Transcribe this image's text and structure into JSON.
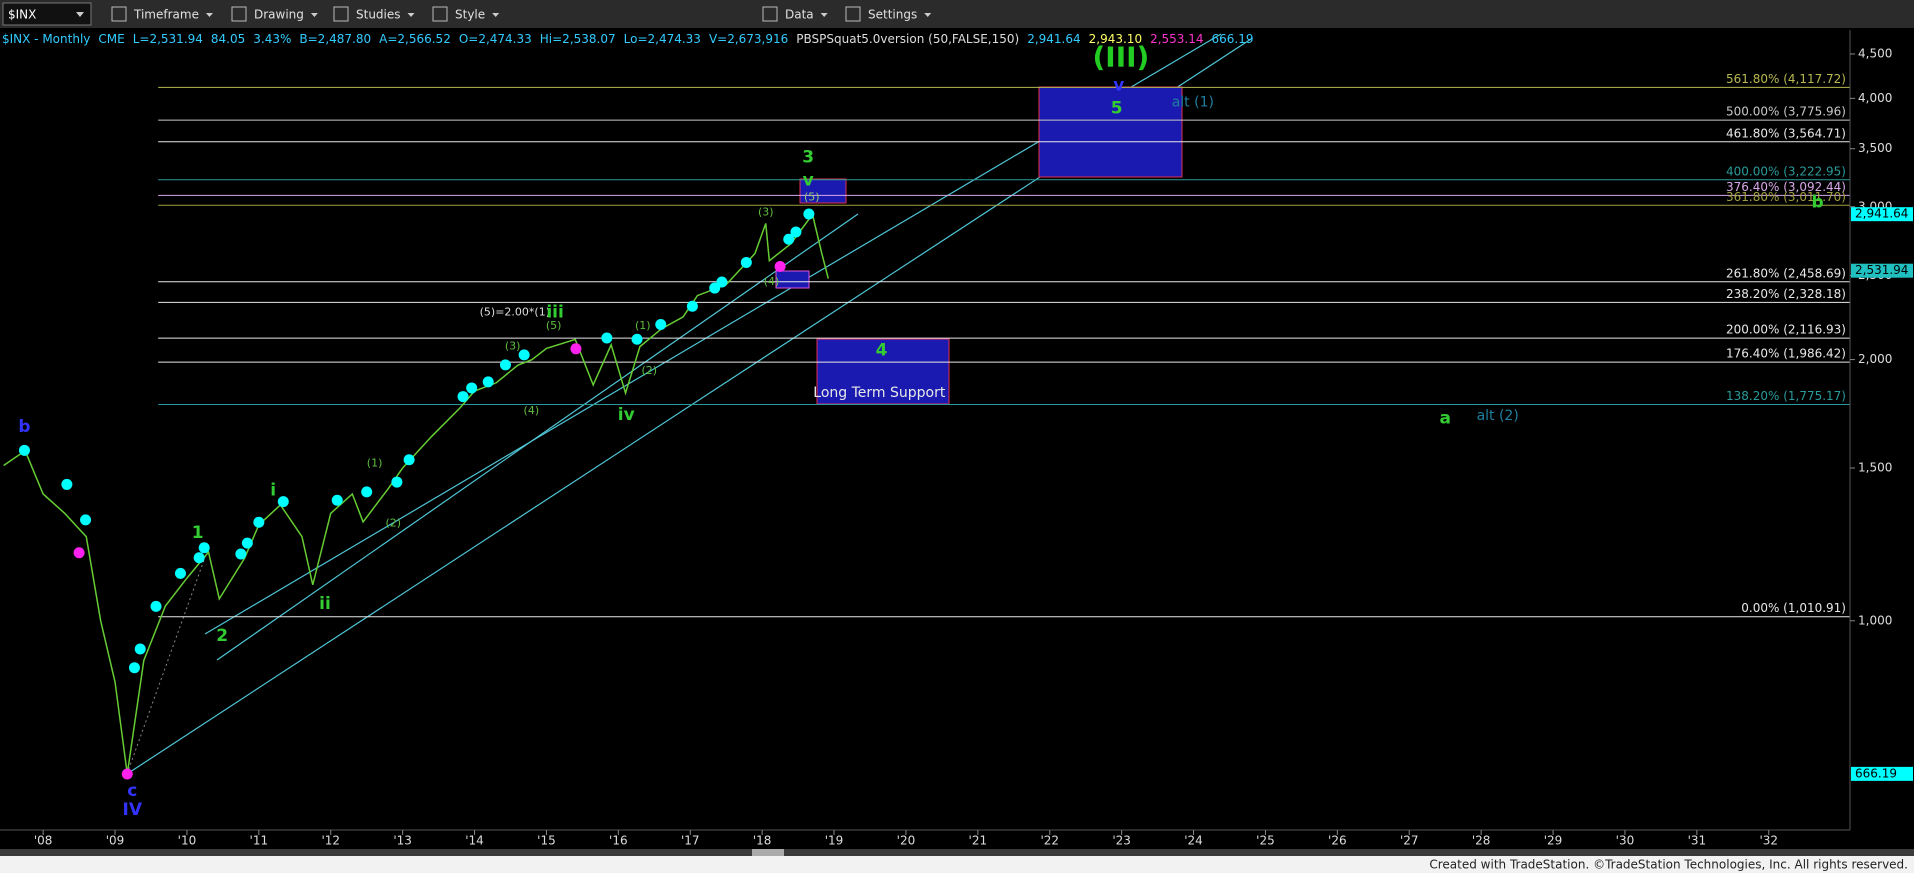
{
  "toolbar": {
    "symbol": "$INX",
    "menus": [
      "Timeframe",
      "Drawing",
      "Studies",
      "Style",
      "Data",
      "Settings"
    ]
  },
  "header": {
    "parts": [
      {
        "text": "$INX - Monthly",
        "color": "#33ccff"
      },
      {
        "text": "CME",
        "color": "#33ccff"
      },
      {
        "text": "L=2,531.94",
        "color": "#33ccff"
      },
      {
        "text": "84.05",
        "color": "#33ccff"
      },
      {
        "text": "3.43%",
        "color": "#33ccff"
      },
      {
        "text": "B=2,487.80",
        "color": "#33ccff"
      },
      {
        "text": "A=2,566.52",
        "color": "#33ccff"
      },
      {
        "text": "O=2,474.33",
        "color": "#33ccff"
      },
      {
        "text": "Hi=2,538.07",
        "color": "#33ccff"
      },
      {
        "text": "Lo=2,474.33",
        "color": "#33ccff"
      },
      {
        "text": "V=2,673,916",
        "color": "#33ccff"
      },
      {
        "text": "PBSPSquat5.0version (50,FALSE,150)",
        "color": "#dddddd"
      },
      {
        "text": "2,941.64",
        "color": "#33ccff"
      },
      {
        "text": "2,943.10",
        "color": "#ffff66"
      },
      {
        "text": "2,553.14",
        "color": "#ff33cc"
      },
      {
        "text": "666.19",
        "color": "#33ccff"
      }
    ]
  },
  "chart_data": {
    "type": "line",
    "log_scale": true,
    "xlim": [
      2007.4,
      2033.13
    ],
    "ylim": [
      574,
      4670
    ],
    "xticks": [
      {
        "value": 2008,
        "label": "'08"
      },
      {
        "value": 2009,
        "label": "'09"
      },
      {
        "value": 2010,
        "label": "'10"
      },
      {
        "value": 2011,
        "label": "'11"
      },
      {
        "value": 2012,
        "label": "'12"
      },
      {
        "value": 2013,
        "label": "'13"
      },
      {
        "value": 2014,
        "label": "'14"
      },
      {
        "value": 2015,
        "label": "'15"
      },
      {
        "value": 2016,
        "label": "'16"
      },
      {
        "value": 2017,
        "label": "'17"
      },
      {
        "value": 2018,
        "label": "'18"
      },
      {
        "value": 2019,
        "label": "'19"
      },
      {
        "value": 2020,
        "label": "'20"
      },
      {
        "value": 2021,
        "label": "'21"
      },
      {
        "value": 2022,
        "label": "'22"
      },
      {
        "value": 2023,
        "label": "'23"
      },
      {
        "value": 2024,
        "label": "'24"
      },
      {
        "value": 2025,
        "label": "'25"
      },
      {
        "value": 2026,
        "label": "'26"
      },
      {
        "value": 2027,
        "label": "'27"
      },
      {
        "value": 2028,
        "label": "'28"
      },
      {
        "value": 2029,
        "label": "'29"
      },
      {
        "value": 2030,
        "label": "'30"
      },
      {
        "value": 2031,
        "label": "'31"
      },
      {
        "value": 2032,
        "label": "'32"
      }
    ],
    "yticks": [
      {
        "value": 4500,
        "label": "4,500"
      },
      {
        "value": 4000,
        "label": "4,000"
      },
      {
        "value": 3500,
        "label": "3,500"
      },
      {
        "value": 3000,
        "label": "3,000"
      },
      {
        "value": 2500,
        "label": "2,500"
      },
      {
        "value": 2000,
        "label": "2,000"
      },
      {
        "value": 1500,
        "label": "1,500"
      },
      {
        "value": 1000,
        "label": "1,000"
      }
    ],
    "x": [
      2007.45,
      2007.75,
      2008.0,
      2008.3,
      2008.6,
      2008.8,
      2009.0,
      2009.17,
      2009.4,
      2009.7,
      2010.0,
      2010.3,
      2010.45,
      2010.8,
      2011.0,
      2011.3,
      2011.6,
      2011.75,
      2012.0,
      2012.3,
      2012.45,
      2012.8,
      2013.0,
      2013.4,
      2013.8,
      2014.0,
      2014.3,
      2014.6,
      2014.8,
      2015.0,
      2015.4,
      2015.65,
      2015.9,
      2016.1,
      2016.3,
      2016.6,
      2016.9,
      2017.1,
      2017.5,
      2017.9,
      2018.05,
      2018.1,
      2018.4,
      2018.7,
      2018.83,
      2018.92
    ],
    "series": [
      {
        "color": "#66cc33",
        "values": [
          1510,
          1570,
          1400,
          1330,
          1250,
          1000,
          850,
          666,
          900,
          1040,
          1120,
          1200,
          1060,
          1180,
          1290,
          1360,
          1250,
          1100,
          1330,
          1400,
          1300,
          1420,
          1500,
          1630,
          1760,
          1840,
          1880,
          1970,
          2000,
          2060,
          2110,
          1870,
          2080,
          1830,
          2070,
          2170,
          2240,
          2370,
          2440,
          2650,
          2870,
          2600,
          2720,
          2940,
          2650,
          2480
        ]
      }
    ],
    "marker_sets": [
      {
        "color": "#00ffff",
        "x": [
          2007.74,
          2008.33,
          2008.59,
          2009.27,
          2009.35,
          2009.57,
          2009.91,
          2010.17,
          2010.24,
          2010.75,
          2010.84,
          2011.0,
          2011.34,
          2012.09,
          2012.5,
          2012.92,
          2013.09,
          2013.84,
          2013.96,
          2014.19,
          2014.43,
          2014.69,
          2015.84,
          2016.26,
          2016.59,
          2017.03,
          2017.34,
          2017.44,
          2017.78,
          2018.37,
          2018.47,
          2018.65
        ],
        "values": [
          1572,
          1436,
          1307,
          883,
          928,
          1039,
          1134,
          1182,
          1214,
          1194,
          1229,
          1299,
          1372,
          1377,
          1408,
          1445,
          1533,
          1813,
          1855,
          1885,
          1972,
          2025,
          2118,
          2111,
          2195,
          2304,
          2418,
          2457,
          2588,
          2752,
          2806,
          2943
        ]
      },
      {
        "color": "#ff22ee",
        "x": [
          2008.5,
          2009.17,
          2015.41,
          2018.25
        ],
        "values": [
          1198,
          666,
          2058,
          2560
        ]
      }
    ],
    "levels": [
      {
        "label": "561.80% (4,117.72)",
        "value": 4117.72,
        "color": "#b8b850"
      },
      {
        "label": "500.00% (3,775.96)",
        "value": 3775.96,
        "color": "#c8c8c8"
      },
      {
        "label": "461.80% (3,564.71)",
        "value": 3564.71,
        "color": "#e8e8e8"
      },
      {
        "label": "400.00% (3,222.95)",
        "value": 3222.95,
        "color": "#2a9a9a"
      },
      {
        "label": "376.40% (3,092.44)",
        "value": 3092.44,
        "color": "#d8a8e8"
      },
      {
        "label": "361.80% (3,011.70)",
        "value": 3011.7,
        "color": "#a0a040"
      },
      {
        "label": "261.80% (2,458.69)",
        "value": 2458.69,
        "color": "#e8e8e8"
      },
      {
        "label": "238.20% (2,328.18)",
        "value": 2328.18,
        "color": "#e8e8e8"
      },
      {
        "label": "200.00% (2,116.93)",
        "value": 2116.93,
        "color": "#e8e8e8"
      },
      {
        "label": "176.40% (1,986.42)",
        "value": 1986.42,
        "color": "#e8e8e8"
      },
      {
        "label": "138.20% (1,775.17)",
        "value": 1775.17,
        "color": "#2a9a9a"
      },
      {
        "label": "0.00% (1,010.91)",
        "value": 1010.91,
        "color": "#e8e8e8"
      }
    ],
    "price_tags": [
      {
        "value": 2941.64,
        "label": "2,941.64",
        "color": "#00ffff"
      },
      {
        "value": 2531.94,
        "label": "2,531.94",
        "color": "#20c0c0"
      },
      {
        "value": 666.19,
        "label": "666.19",
        "color": "#00ffff"
      }
    ],
    "annotations": [
      {
        "text": "(III)",
        "x": 2022.99,
        "y": 4445,
        "color": "#22cc22",
        "style": "large"
      },
      {
        "text": "v",
        "x": 2022.96,
        "y": 4140,
        "color": "#3333ff",
        "style": "medium"
      },
      {
        "text": "5",
        "x": 2022.93,
        "y": 3893,
        "color": "#33cc33",
        "style": "medium"
      },
      {
        "text": "alt (1)",
        "x": 2023.99,
        "y": 3955,
        "color": "#1f7f9f",
        "style": "label"
      },
      {
        "text": "b",
        "x": 2032.68,
        "y": 3034,
        "color": "#33cc33",
        "style": "medium"
      },
      {
        "text": "a",
        "x": 2027.5,
        "y": 1710,
        "color": "#33cc33",
        "style": "medium"
      },
      {
        "text": "alt (2)",
        "x": 2028.23,
        "y": 1722,
        "color": "#1f7f9f",
        "style": "label"
      },
      {
        "text": "3",
        "x": 2018.64,
        "y": 3420,
        "color": "#33cc33",
        "style": "medium"
      },
      {
        "text": "v",
        "x": 2018.64,
        "y": 3216,
        "color": "#33cc33",
        "style": "medium"
      },
      {
        "text": "(5)",
        "x": 2018.69,
        "y": 3073,
        "color": "#8fcf6f",
        "style": "small"
      },
      {
        "text": "(3)",
        "x": 2018.05,
        "y": 2956,
        "color": "#5fbf3f",
        "style": "small"
      },
      {
        "text": "(4)",
        "x": 2018.13,
        "y": 2458,
        "color": "#5fbf3f",
        "style": "small"
      },
      {
        "text": "(5)=2.00*(1)",
        "x": 2014.56,
        "y": 2267,
        "color": "#dddddd",
        "style": "small"
      },
      {
        "text": "iii",
        "x": 2015.12,
        "y": 2267,
        "color": "#33cc33",
        "style": "medium"
      },
      {
        "text": "(5)",
        "x": 2015.1,
        "y": 2187,
        "color": "#5fbf3f",
        "style": "small"
      },
      {
        "text": "(3)",
        "x": 2014.53,
        "y": 2070,
        "color": "#5fbf3f",
        "style": "small"
      },
      {
        "text": "(1)",
        "x": 2016.34,
        "y": 2187,
        "color": "#5fbf3f",
        "style": "small"
      },
      {
        "text": "(2)",
        "x": 2016.43,
        "y": 1941,
        "color": "#5fbf3f",
        "style": "small"
      },
      {
        "text": "iv",
        "x": 2016.11,
        "y": 1727,
        "color": "#33cc33",
        "style": "medium"
      },
      {
        "text": "(4)",
        "x": 2014.79,
        "y": 1744,
        "color": "#5fbf3f",
        "style": "small"
      },
      {
        "text": "i",
        "x": 2011.2,
        "y": 1413,
        "color": "#33cc33",
        "style": "medium"
      },
      {
        "text": "(1)",
        "x": 2012.61,
        "y": 1517,
        "color": "#5fbf3f",
        "style": "small"
      },
      {
        "text": "(2)",
        "x": 2012.87,
        "y": 1294,
        "color": "#5fbf3f",
        "style": "small"
      },
      {
        "text": "1",
        "x": 2010.15,
        "y": 1262,
        "color": "#33cc33",
        "style": "medium"
      },
      {
        "text": "2",
        "x": 2010.49,
        "y": 961,
        "color": "#33cc33",
        "style": "medium"
      },
      {
        "text": "ii",
        "x": 2011.92,
        "y": 1046,
        "color": "#33cc33",
        "style": "medium"
      },
      {
        "text": "b",
        "x": 2007.74,
        "y": 1673,
        "color": "#3333ff",
        "style": "medium"
      },
      {
        "text": "c",
        "x": 2009.24,
        "y": 637,
        "color": "#3333ff",
        "style": "medium"
      },
      {
        "text": "IV",
        "x": 2009.24,
        "y": 605,
        "color": "#3333ff",
        "style": "medium"
      },
      {
        "text": "4",
        "x": 2019.66,
        "y": 2050,
        "color": "#33cc33",
        "style": "medium"
      },
      {
        "text": "Long Term Support",
        "x": 2019.63,
        "y": 1831,
        "color": "#e8e8e8",
        "style": "label"
      }
    ]
  },
  "footer": "Created with TradeStation. ©TradeStation Technologies, Inc. All rights reserved."
}
